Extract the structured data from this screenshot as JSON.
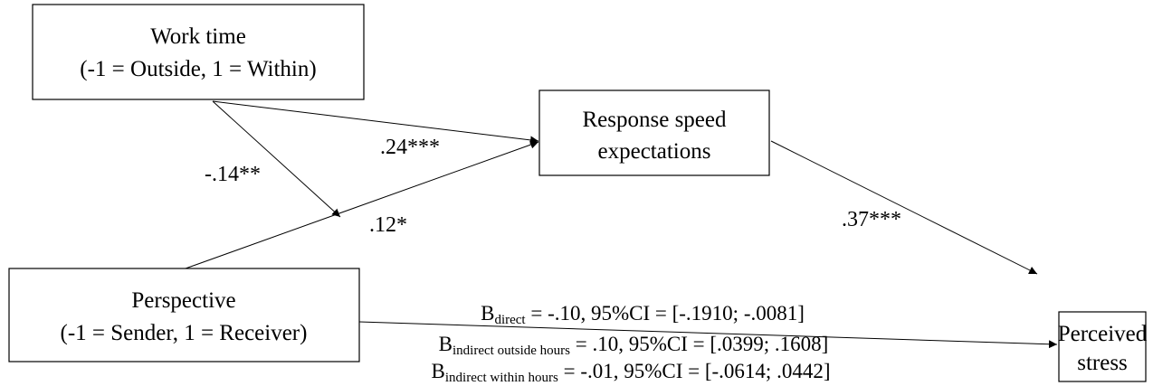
{
  "nodes": [
    {
      "lines": [
        "Work time",
        "(-1 = Outside, 1 = Within)"
      ]
    },
    {
      "lines": [
        "Response speed",
        "expectations"
      ]
    },
    {
      "lines": [
        "Perspective",
        "(-1 = Sender, 1 = Receiver)"
      ]
    },
    {
      "lines": [
        "Perceived",
        "stress"
      ]
    }
  ],
  "edge_labels": [
    ".24***",
    "-.14**",
    ".12*",
    ".37***"
  ],
  "effects": [
    {
      "symbol": "B",
      "subscript": "direct",
      "text": " = -.10, 95%CI = [-.1910; -.0081]"
    },
    {
      "symbol": "B",
      "subscript": "indirect outside hours",
      "text": " = .10, 95%CI = [.0399; .1608]"
    },
    {
      "symbol": "B",
      "subscript": "indirect within hours",
      "text": " = -.01, 95%CI = [-.0614; .0442]"
    }
  ]
}
